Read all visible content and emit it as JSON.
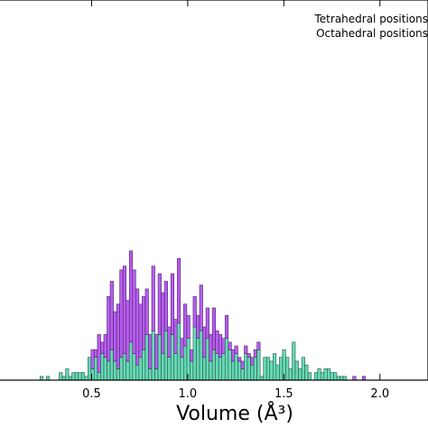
{
  "chart_data": {
    "type": "bar",
    "stacked": true,
    "xlabel": "Volume (Å³)",
    "xlim": [
      0.0,
      2.25
    ],
    "ylim": [
      0,
      100
    ],
    "bin_start": 0.215,
    "bin_width": 0.0166,
    "xticks": [
      0.5,
      1.0,
      1.5,
      2.0
    ],
    "xtick_labels": [
      "0.5",
      "1.0",
      "1.5",
      "2.0"
    ],
    "legend": {
      "placement": "top-right",
      "entries": [
        "Tetrahedral positions",
        "Octahedral positions"
      ]
    },
    "series": [
      {
        "name": "Octahedral positions",
        "color": "#66d9b5",
        "values": [
          0,
          1,
          0,
          1,
          0,
          0,
          0,
          2,
          1,
          3,
          1,
          2,
          2,
          2,
          2,
          1,
          6,
          3,
          6,
          2,
          7,
          6,
          5,
          8,
          5,
          3,
          6,
          7,
          5,
          10,
          7,
          4,
          6,
          8,
          12,
          3,
          13,
          3,
          12,
          7,
          13,
          6,
          12,
          7,
          15,
          6,
          9,
          11,
          5,
          14,
          11,
          13,
          6,
          11,
          5,
          8,
          7,
          6,
          7,
          11,
          8,
          5,
          7,
          5,
          3,
          7,
          6,
          4,
          6,
          8,
          1,
          6,
          6,
          5,
          7,
          4,
          6,
          8,
          6,
          3,
          10,
          5,
          3,
          6,
          4,
          2,
          0,
          2,
          3,
          2,
          3,
          3,
          2,
          2,
          1,
          1,
          1,
          0,
          0,
          0,
          0,
          0,
          0,
          0,
          0,
          0
        ]
      },
      {
        "name": "Tetrahedral positions",
        "color": "#b85ef0",
        "values": [
          0,
          0,
          0,
          0,
          0,
          0,
          0,
          0,
          0,
          0,
          0,
          0,
          0,
          0,
          0,
          0,
          0,
          5,
          2,
          10,
          3,
          6,
          17,
          18,
          13,
          17,
          23,
          23,
          16,
          24,
          22,
          20,
          14,
          14,
          12,
          9,
          17,
          9,
          16,
          16,
          13,
          8,
          16,
          9,
          17,
          5,
          11,
          6,
          3,
          8,
          6,
          12,
          8,
          8,
          7,
          11,
          6,
          6,
          4,
          6,
          2,
          3,
          2,
          1,
          2,
          2,
          1,
          2,
          2,
          2,
          0,
          0,
          0,
          0,
          0,
          0,
          0,
          0,
          0,
          0,
          0,
          0,
          0,
          0,
          0,
          0,
          0,
          0,
          0,
          0,
          0,
          0,
          0,
          0,
          0,
          0,
          0,
          0,
          0,
          1,
          0,
          0,
          1,
          0,
          0,
          0
        ]
      }
    ]
  }
}
